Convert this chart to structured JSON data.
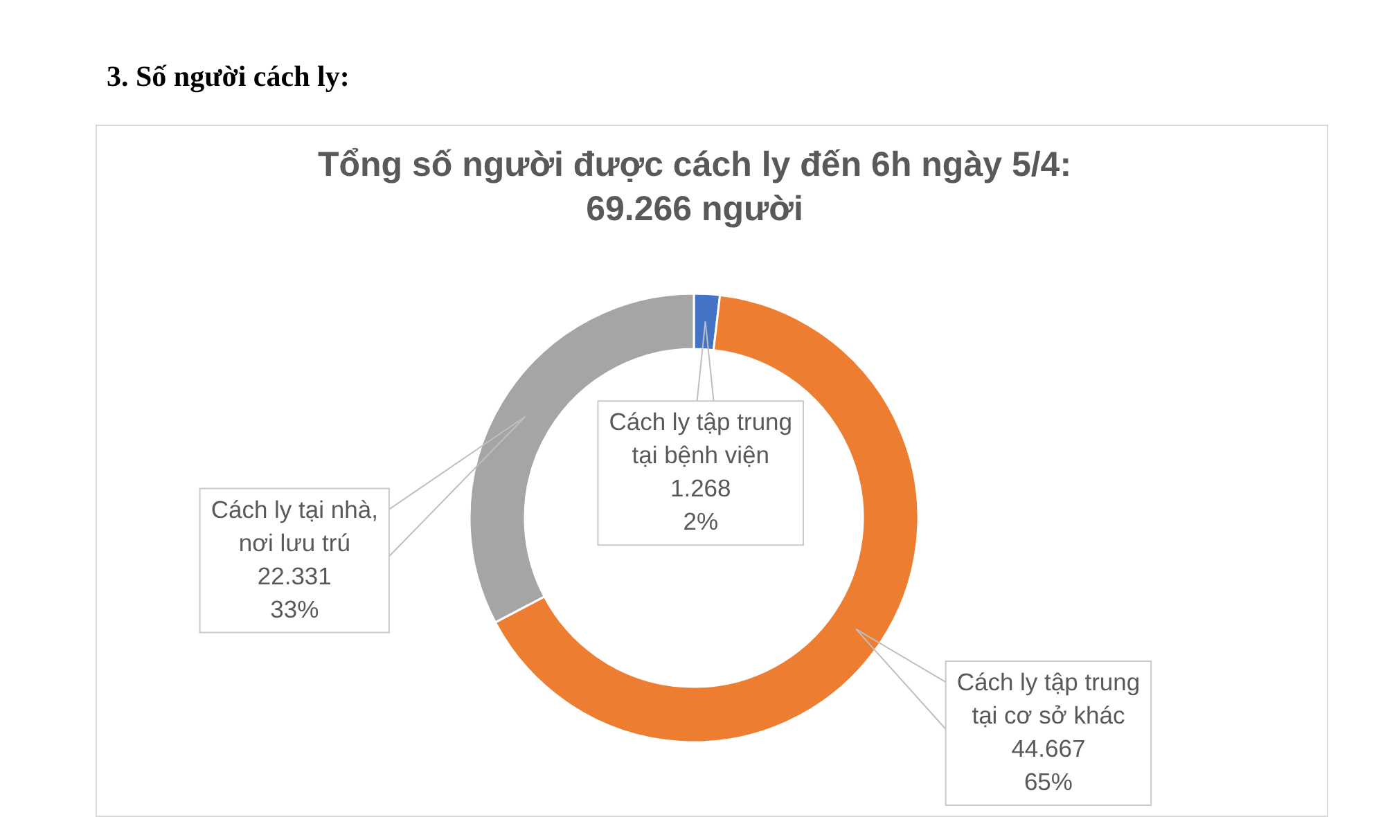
{
  "chart_data": {
    "type": "donut",
    "title": "Tổng số người được cách ly đến 6h ngày 5/4: 69.266 người",
    "categories": [
      "Cách ly tập trung tại bệnh viện",
      "Cách ly tập trung tại cơ sở khác",
      "Cách ly tại nhà, nơi lưu trú"
    ],
    "values": [
      1268,
      44667,
      22331
    ],
    "colors": [
      "#4472c4",
      "#ed7d31",
      "#a5a5a5"
    ],
    "value_labels": [
      "1.268\n2%",
      "44.667\n65%",
      "22.331\n33%"
    ],
    "legend": false,
    "annotations": [
      "3. Số người cách ly:"
    ]
  }
}
